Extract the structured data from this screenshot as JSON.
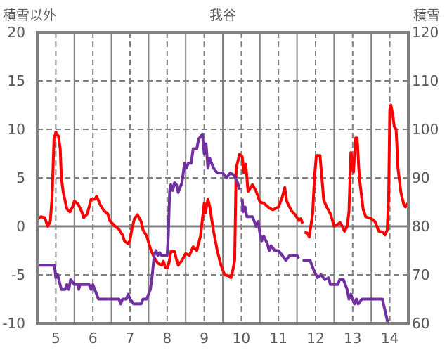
{
  "chart_data": {
    "type": "line",
    "title": "我谷",
    "ylabel_left": "積雪以外",
    "ylabel_right": "積雪",
    "xlim": [
      4.5,
      14.5
    ],
    "ylim_left": [
      -10,
      20
    ],
    "ylim_right": [
      60,
      120
    ],
    "x_ticks": [
      5,
      6,
      7,
      8,
      9,
      10,
      11,
      12,
      13,
      14
    ],
    "y_ticks_left": [
      20,
      15,
      10,
      5,
      0,
      -5,
      -10
    ],
    "y_ticks_right": [
      120,
      110,
      100,
      90,
      80,
      70,
      60
    ],
    "grid": true,
    "legend": "none",
    "colors": {
      "red_series": "#ff0000",
      "purple_series": "#7030a0",
      "grid": "#808080",
      "text": "#595959"
    },
    "series": [
      {
        "name": "積雪以外",
        "axis": "left",
        "color": "#ff0000",
        "points": [
          [
            4.5,
            0.7
          ],
          [
            4.6,
            1.0
          ],
          [
            4.7,
            0.9
          ],
          [
            4.78,
            0.0
          ],
          [
            4.85,
            0.5
          ],
          [
            4.9,
            3
          ],
          [
            4.95,
            9
          ],
          [
            5.0,
            9.7
          ],
          [
            5.07,
            9.3
          ],
          [
            5.12,
            8
          ],
          [
            5.15,
            5
          ],
          [
            5.2,
            3.5
          ],
          [
            5.3,
            1.8
          ],
          [
            5.38,
            1.5
          ],
          [
            5.45,
            2
          ],
          [
            5.5,
            2.6
          ],
          [
            5.6,
            2.3
          ],
          [
            5.7,
            1.5
          ],
          [
            5.75,
            0.9
          ],
          [
            5.85,
            1.3
          ],
          [
            5.95,
            2.8
          ],
          [
            6.05,
            2.8
          ],
          [
            6.1,
            3.1
          ],
          [
            6.2,
            2.2
          ],
          [
            6.3,
            1.6
          ],
          [
            6.4,
            1.3
          ],
          [
            6.45,
            0.6
          ],
          [
            6.55,
            0.2
          ],
          [
            6.6,
            0
          ],
          [
            6.7,
            -0.3
          ],
          [
            6.8,
            -0.9
          ],
          [
            6.85,
            -1.5
          ],
          [
            6.95,
            -1.8
          ],
          [
            7.0,
            -1.4
          ],
          [
            7.05,
            -0.3
          ],
          [
            7.12,
            0.8
          ],
          [
            7.2,
            1.2
          ],
          [
            7.3,
            0.5
          ],
          [
            7.35,
            -0.4
          ],
          [
            7.45,
            -1
          ],
          [
            7.55,
            -2.3
          ],
          [
            7.65,
            -3.2
          ],
          [
            7.75,
            -3.8
          ],
          [
            7.85,
            -4.0
          ],
          [
            7.9,
            -3.6
          ],
          [
            7.95,
            -4.2
          ],
          [
            8.0,
            -4.3
          ],
          [
            8.05,
            -3.8
          ],
          [
            8.1,
            -2.6
          ],
          [
            8.2,
            -2.6
          ],
          [
            8.25,
            -3.4
          ],
          [
            8.3,
            -4.0
          ],
          [
            8.4,
            -3.5
          ],
          [
            8.5,
            -2.8
          ],
          [
            8.6,
            -3
          ],
          [
            8.7,
            -2.1
          ],
          [
            8.8,
            -2.5
          ],
          [
            8.9,
            -1
          ],
          [
            9.0,
            2.4
          ],
          [
            9.03,
            1.4
          ],
          [
            9.1,
            2.8
          ],
          [
            9.15,
            2
          ],
          [
            9.25,
            -0.5
          ],
          [
            9.35,
            -2.5
          ],
          [
            9.45,
            -4
          ],
          [
            9.55,
            -5
          ],
          [
            9.65,
            -5.1
          ],
          [
            9.72,
            -5.3
          ],
          [
            9.77,
            -4.5
          ],
          [
            9.82,
            -3.5
          ],
          [
            9.86,
            6
          ],
          [
            9.95,
            7.4
          ],
          [
            10.02,
            7.2
          ],
          [
            10.07,
            5.5
          ],
          [
            10.12,
            6.4
          ],
          [
            10.18,
            3.6
          ],
          [
            10.3,
            4.3
          ],
          [
            10.4,
            3.6
          ],
          [
            10.5,
            2.5
          ],
          [
            10.6,
            2.4
          ],
          [
            10.75,
            1.9
          ],
          [
            10.85,
            1.7
          ],
          [
            11.0,
            2.0
          ],
          [
            11.1,
            3
          ],
          [
            11.17,
            4.0
          ],
          [
            11.22,
            2.6
          ],
          [
            11.35,
            1.6
          ],
          [
            11.45,
            1.2
          ],
          [
            11.55,
            0.6
          ],
          [
            11.6,
            0.8
          ],
          [
            11.65,
            0.3
          ],
          null,
          [
            11.7,
            -0.6
          ],
          [
            11.78,
            -0.7
          ],
          [
            11.83,
            -1.1
          ],
          [
            11.92,
            1.3
          ],
          [
            11.97,
            5
          ],
          [
            12.02,
            7.3
          ],
          [
            12.12,
            7.3
          ],
          [
            12.17,
            5
          ],
          [
            12.22,
            2.7
          ],
          [
            12.3,
            2.0
          ],
          [
            12.4,
            1.3
          ],
          [
            12.5,
            0
          ],
          [
            12.6,
            0.2
          ],
          [
            12.66,
            0.4
          ],
          [
            12.72,
            0
          ],
          [
            12.78,
            -0.5
          ],
          [
            12.85,
            0
          ],
          [
            12.9,
            1.5
          ],
          [
            12.95,
            7.6
          ],
          [
            13.02,
            5.6
          ],
          [
            13.08,
            9.1
          ],
          [
            13.12,
            9.1
          ],
          [
            13.18,
            5
          ],
          [
            13.28,
            1.8
          ],
          [
            13.35,
            1.0
          ],
          [
            13.5,
            0.8
          ],
          [
            13.6,
            0.5
          ],
          [
            13.7,
            -0.5
          ],
          [
            13.82,
            -0.6
          ],
          [
            13.87,
            -0.9
          ],
          [
            13.93,
            -0.4
          ],
          [
            13.97,
            3
          ],
          [
            14.0,
            12
          ],
          [
            14.03,
            12.5
          ],
          [
            14.08,
            11.5
          ],
          [
            14.12,
            10.3
          ],
          [
            14.17,
            10
          ],
          [
            14.22,
            6
          ],
          [
            14.3,
            3.5
          ],
          [
            14.38,
            2.2
          ],
          [
            14.42,
            2
          ],
          [
            14.46,
            2.3
          ],
          [
            14.5,
            2.2
          ]
        ]
      },
      {
        "name": "積雪",
        "axis": "right",
        "color": "#7030a0",
        "points": [
          [
            4.5,
            72
          ],
          [
            4.95,
            72
          ],
          [
            4.98,
            71
          ],
          [
            5.0,
            69.4
          ],
          [
            5.05,
            70
          ],
          [
            5.15,
            67
          ],
          [
            5.25,
            67
          ],
          [
            5.3,
            68
          ],
          [
            5.35,
            67
          ],
          [
            5.4,
            69
          ],
          [
            5.5,
            68
          ],
          [
            5.6,
            68
          ],
          [
            5.62,
            67
          ],
          [
            5.65,
            68
          ],
          [
            5.9,
            68
          ],
          [
            5.95,
            67
          ],
          [
            6.0,
            68
          ],
          [
            6.05,
            67
          ],
          [
            6.15,
            65
          ],
          [
            6.7,
            65
          ],
          [
            6.75,
            64
          ],
          [
            6.8,
            65
          ],
          [
            6.9,
            65
          ],
          [
            6.95,
            66
          ],
          [
            7.0,
            65
          ],
          [
            7.1,
            64
          ],
          [
            7.3,
            64
          ],
          [
            7.35,
            65
          ],
          [
            7.45,
            65
          ],
          [
            7.55,
            67
          ],
          [
            7.6,
            70
          ],
          [
            7.65,
            74
          ],
          [
            7.7,
            75
          ],
          [
            7.75,
            74
          ],
          [
            7.8,
            74.6
          ],
          [
            7.85,
            74
          ],
          [
            8.0,
            74
          ],
          [
            8.03,
            78
          ],
          [
            8.07,
            87.4
          ],
          [
            8.1,
            88.6
          ],
          [
            8.15,
            87.4
          ],
          [
            8.2,
            89
          ],
          [
            8.25,
            88.6
          ],
          [
            8.3,
            87
          ],
          [
            8.4,
            89
          ],
          [
            8.47,
            93
          ],
          [
            8.52,
            92
          ],
          [
            8.57,
            93
          ],
          [
            8.65,
            93
          ],
          [
            8.7,
            96
          ],
          [
            8.8,
            96
          ],
          [
            8.85,
            98
          ],
          [
            8.95,
            99
          ],
          [
            9.0,
            95
          ],
          [
            9.05,
            97
          ],
          [
            9.1,
            92
          ],
          [
            9.15,
            94
          ],
          [
            9.25,
            92
          ],
          [
            9.35,
            91
          ],
          [
            9.5,
            91
          ],
          [
            9.6,
            90
          ],
          [
            9.7,
            91
          ],
          [
            9.8,
            90.6
          ],
          [
            9.9,
            89
          ],
          [
            9.95,
            87.6
          ],
          null,
          [
            10.02,
            85.7
          ],
          [
            10.05,
            83
          ],
          [
            10.1,
            84
          ],
          [
            10.15,
            82
          ],
          [
            10.3,
            82
          ],
          [
            10.4,
            80
          ],
          [
            10.45,
            81
          ],
          [
            10.5,
            78.6
          ],
          [
            10.55,
            77
          ],
          [
            10.6,
            78
          ],
          [
            10.7,
            76.4
          ],
          [
            10.75,
            75
          ],
          [
            10.8,
            76
          ],
          [
            10.9,
            75
          ],
          [
            11.0,
            75
          ],
          [
            11.1,
            74
          ],
          [
            11.2,
            73
          ],
          [
            11.3,
            74
          ],
          [
            11.5,
            74
          ],
          [
            11.55,
            73.4
          ],
          null,
          [
            11.65,
            73
          ],
          [
            11.85,
            73
          ],
          [
            11.95,
            71
          ],
          [
            12.05,
            69.4
          ],
          [
            12.15,
            70
          ],
          [
            12.25,
            69
          ],
          [
            12.35,
            69.4
          ],
          [
            12.4,
            68
          ],
          [
            12.6,
            68
          ],
          [
            12.65,
            69
          ],
          [
            12.75,
            69
          ],
          [
            12.85,
            67
          ],
          [
            12.9,
            65
          ],
          [
            12.95,
            66
          ],
          [
            13.05,
            64
          ],
          [
            13.1,
            65
          ],
          [
            13.15,
            64
          ],
          [
            13.25,
            65
          ],
          [
            13.8,
            65
          ],
          [
            13.95,
            60
          ],
          [
            14.5,
            60
          ]
        ]
      }
    ]
  }
}
